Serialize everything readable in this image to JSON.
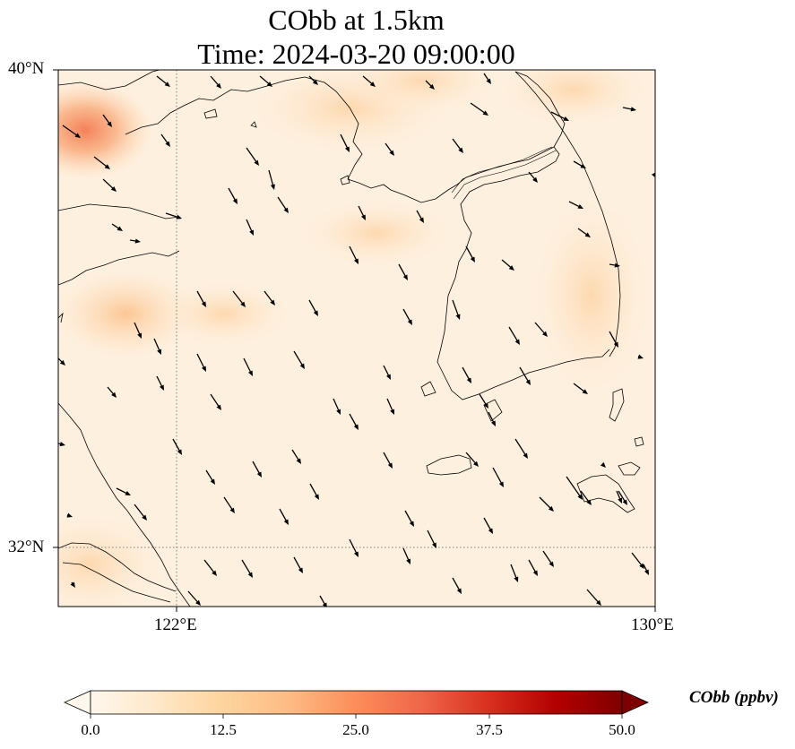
{
  "title": {
    "line1": "CObb at 1.5km",
    "line2": "Time: 2024-03-20 09:00:00"
  },
  "map": {
    "extent": {
      "lon": [
        120.0,
        130.0
      ],
      "lat": [
        31.0,
        40.0
      ]
    },
    "gridlines": {
      "lon": [
        122
      ],
      "lat": [
        32
      ],
      "style": "dotted",
      "color": "#808080"
    },
    "y_tick_labels": [
      "40°N",
      "32°N"
    ],
    "x_tick_labels": [
      "122°E",
      "130°E"
    ],
    "field_variable": "CObb",
    "field_description": "pale orange background with higher values in NW corner and faint blobs",
    "wind_vectors": "black arrows pointing mostly toward south-southeast",
    "coastline_color": "#000000"
  },
  "colorbar": {
    "label": "CObb (ppbv)",
    "ticks": [
      "0.0",
      "12.5",
      "25.0",
      "37.5",
      "50.0"
    ],
    "range": [
      0,
      50
    ],
    "extend": "both",
    "colormap": "OrRd",
    "colors": [
      "#fff7ec",
      "#fee8c8",
      "#fdd49e",
      "#fdbb84",
      "#fc8d59",
      "#ef6548",
      "#d7301f",
      "#b30000",
      "#7f0000"
    ]
  }
}
